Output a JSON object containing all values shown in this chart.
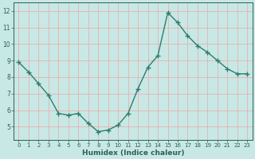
{
  "x": [
    0,
    1,
    2,
    3,
    4,
    5,
    6,
    7,
    8,
    9,
    10,
    11,
    12,
    13,
    14,
    15,
    16,
    17,
    18,
    19,
    20,
    21,
    22,
    23
  ],
  "y": [
    8.9,
    8.3,
    7.6,
    6.9,
    5.8,
    5.7,
    5.8,
    5.2,
    4.7,
    4.8,
    5.1,
    5.8,
    7.3,
    8.6,
    9.3,
    11.9,
    11.3,
    10.5,
    9.9,
    9.5,
    9.0,
    8.5,
    8.2,
    8.2
  ],
  "line_color": "#2d7d6e",
  "bg_color": "#c8e8e5",
  "grid_color": "#e8b0b0",
  "xlabel": "Humidex (Indice chaleur)",
  "xlim": [
    -0.5,
    23.5
  ],
  "ylim": [
    4.2,
    12.5
  ],
  "yticks": [
    5,
    6,
    7,
    8,
    9,
    10,
    11,
    12
  ],
  "xticks": [
    0,
    1,
    2,
    3,
    4,
    5,
    6,
    7,
    8,
    9,
    10,
    11,
    12,
    13,
    14,
    15,
    16,
    17,
    18,
    19,
    20,
    21,
    22,
    23
  ],
  "label_color": "#2d5f5a",
  "tick_color": "#2d5f5a",
  "marker": "+",
  "marker_size": 4,
  "line_width": 1.0
}
